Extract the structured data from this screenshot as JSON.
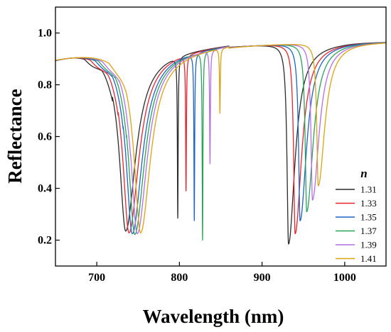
{
  "chart_data": {
    "type": "line",
    "xlabel": "Wavelength (nm)",
    "ylabel": "Reflectance",
    "xlim": [
      650,
      1050
    ],
    "ylim": [
      0.1,
      1.1
    ],
    "xticks": [
      700,
      800,
      900,
      1000
    ],
    "xtick_labels": [
      "700",
      "800",
      "900",
      "1000"
    ],
    "yticks": [
      0.2,
      0.4,
      0.6,
      0.8,
      1.0
    ],
    "ytick_labels": [
      "0.2",
      "0.4",
      "0.6",
      "0.8",
      "1.0"
    ],
    "grid": false,
    "legend": {
      "title": "n",
      "placement": "right"
    },
    "series": [
      {
        "name": "1.31",
        "color": "#2b2b2b",
        "dip1": {
          "center": 735,
          "min": 0.235,
          "width": 9
        },
        "sharp": {
          "center": 798,
          "min": 0.285
        },
        "dip2": {
          "center": 932,
          "min": 0.185
        },
        "step": 705
      },
      {
        "name": "1.33",
        "color": "#e8232d",
        "dip1": {
          "center": 739,
          "min": 0.228,
          "width": 9
        },
        "sharp": {
          "center": 808,
          "min": 0.39
        },
        "dip2": {
          "center": 940,
          "min": 0.225
        },
        "step": 712
      },
      {
        "name": "1.35",
        "color": "#1f63c4",
        "dip1": {
          "center": 743,
          "min": 0.225,
          "width": 9
        },
        "sharp": {
          "center": 818,
          "min": 0.275
        },
        "dip2": {
          "center": 946,
          "min": 0.275
        },
        "step": 718
      },
      {
        "name": "1.37",
        "color": "#2aa15a",
        "dip1": {
          "center": 746,
          "min": 0.222,
          "width": 9
        },
        "sharp": {
          "center": 828,
          "min": 0.2
        },
        "dip2": {
          "center": 954,
          "min": 0.31
        },
        "step": 722
      },
      {
        "name": "1.39",
        "color": "#b46ee6",
        "dip1": {
          "center": 749,
          "min": 0.225,
          "width": 9
        },
        "sharp": {
          "center": 837,
          "min": 0.495
        },
        "dip2": {
          "center": 961,
          "min": 0.355
        },
        "step": 727
      },
      {
        "name": "1.41",
        "color": "#d9a312",
        "dip1": {
          "center": 753,
          "min": 0.228,
          "width": 9
        },
        "sharp": {
          "center": 849,
          "min": 0.69
        },
        "dip2": {
          "center": 968,
          "min": 0.41
        },
        "step": 735
      }
    ]
  }
}
